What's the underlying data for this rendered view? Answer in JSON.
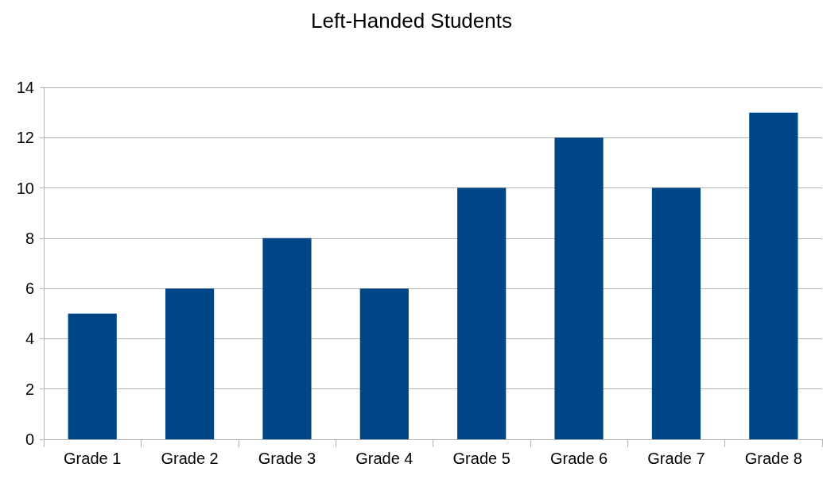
{
  "chart_data": {
    "type": "bar",
    "title": "Left-Handed Students",
    "categories": [
      "Grade 1",
      "Grade 2",
      "Grade 3",
      "Grade 4",
      "Grade 5",
      "Grade 6",
      "Grade 7",
      "Grade 8"
    ],
    "values": [
      5,
      6,
      8,
      6,
      10,
      12,
      10,
      13
    ],
    "color": "#004586",
    "ylim": [
      0,
      14
    ],
    "yticks": [
      0,
      2,
      4,
      6,
      8,
      10,
      12,
      14
    ],
    "grid": "y"
  }
}
